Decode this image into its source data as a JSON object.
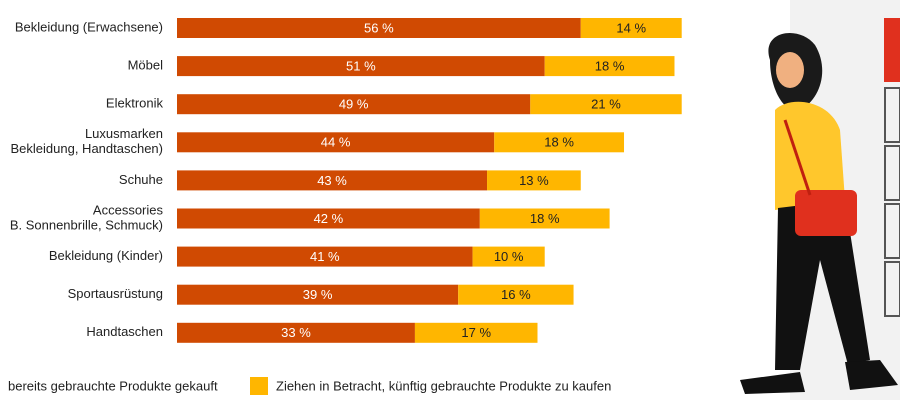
{
  "chart_data": {
    "type": "stacked-bar-horizontal",
    "categories": [
      [
        "Bekleidung (Erwachsene)"
      ],
      [
        "Möbel"
      ],
      [
        "Elektronik"
      ],
      [
        "Luxusmarken",
        "Bekleidung, Handtaschen)"
      ],
      [
        "Schuhe"
      ],
      [
        "Accessories",
        "B. Sonnenbrille, Schmuck)"
      ],
      [
        "Bekleidung (Kinder)"
      ],
      [
        "Sportausrüstung"
      ],
      [
        "Handtaschen"
      ]
    ],
    "series": [
      {
        "name": "bereits gebrauchte Produkte gekauft",
        "color": "#d04a02",
        "values": [
          56,
          51,
          49,
          44,
          43,
          42,
          41,
          39,
          33
        ],
        "value_labels": [
          "56 %",
          "51 %",
          "49 %",
          "44 %",
          "43 %",
          "42 %",
          "41 %",
          "39 %",
          "33 %"
        ]
      },
      {
        "name": "Ziehen in Betracht, künftig gebrauchte Produkte zu kaufen",
        "color": "#ffb600",
        "values": [
          14,
          18,
          21,
          18,
          13,
          18,
          10,
          16,
          17
        ],
        "value_labels": [
          "14 %",
          "18 %",
          "21 %",
          "18 %",
          "13 %",
          "18 %",
          "10 %",
          "16 %",
          "17 %"
        ]
      }
    ]
  }
}
